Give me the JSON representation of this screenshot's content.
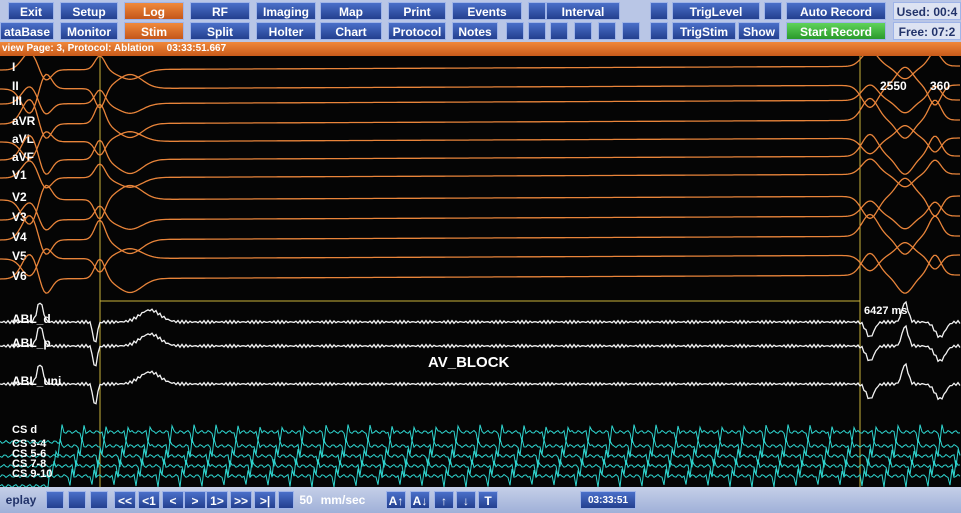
{
  "toolbar": {
    "row1": [
      "Exit",
      "Setup",
      "Log",
      "RF",
      "Imaging",
      "Map",
      "Print",
      "Events",
      "Interval",
      "TrigLevel",
      "Auto Record",
      "Used: 00:4"
    ],
    "row2": [
      "ataBase",
      "Monitor",
      "Stim",
      "Split",
      "Holter",
      "Chart",
      "Protocol",
      "Notes",
      "TrigStim",
      "Show",
      "Start Record",
      "Free: 07:2"
    ]
  },
  "status": {
    "page": "view Page: 3, Protocol: Ablation",
    "time": "03:33:51.667"
  },
  "channels": [
    "I",
    "II",
    "III",
    "aVR",
    "aVL",
    "aVF",
    "V1",
    "V2",
    "V3",
    "V4",
    "V5",
    "V6",
    "ABL_d",
    "ABL_p",
    "ABL_uni",
    "CS d",
    "CS 3-4",
    "CS 5-6",
    "CS 7-8",
    "CS 9-10"
  ],
  "annotations": {
    "measure_1": "2550",
    "measure_2": "360",
    "interval": "6427 ms",
    "event": "AV_BLOCK"
  },
  "playback": {
    "replay": "eplay",
    "buttons": [
      "<<",
      "<1",
      "<",
      ">",
      "1>",
      ">>",
      ">|"
    ],
    "speed": "50",
    "unit": "mm/sec",
    "scale_buttons": [
      "A↑",
      "A↓",
      "↑",
      "↓",
      "T"
    ],
    "time": "03:33:51"
  }
}
